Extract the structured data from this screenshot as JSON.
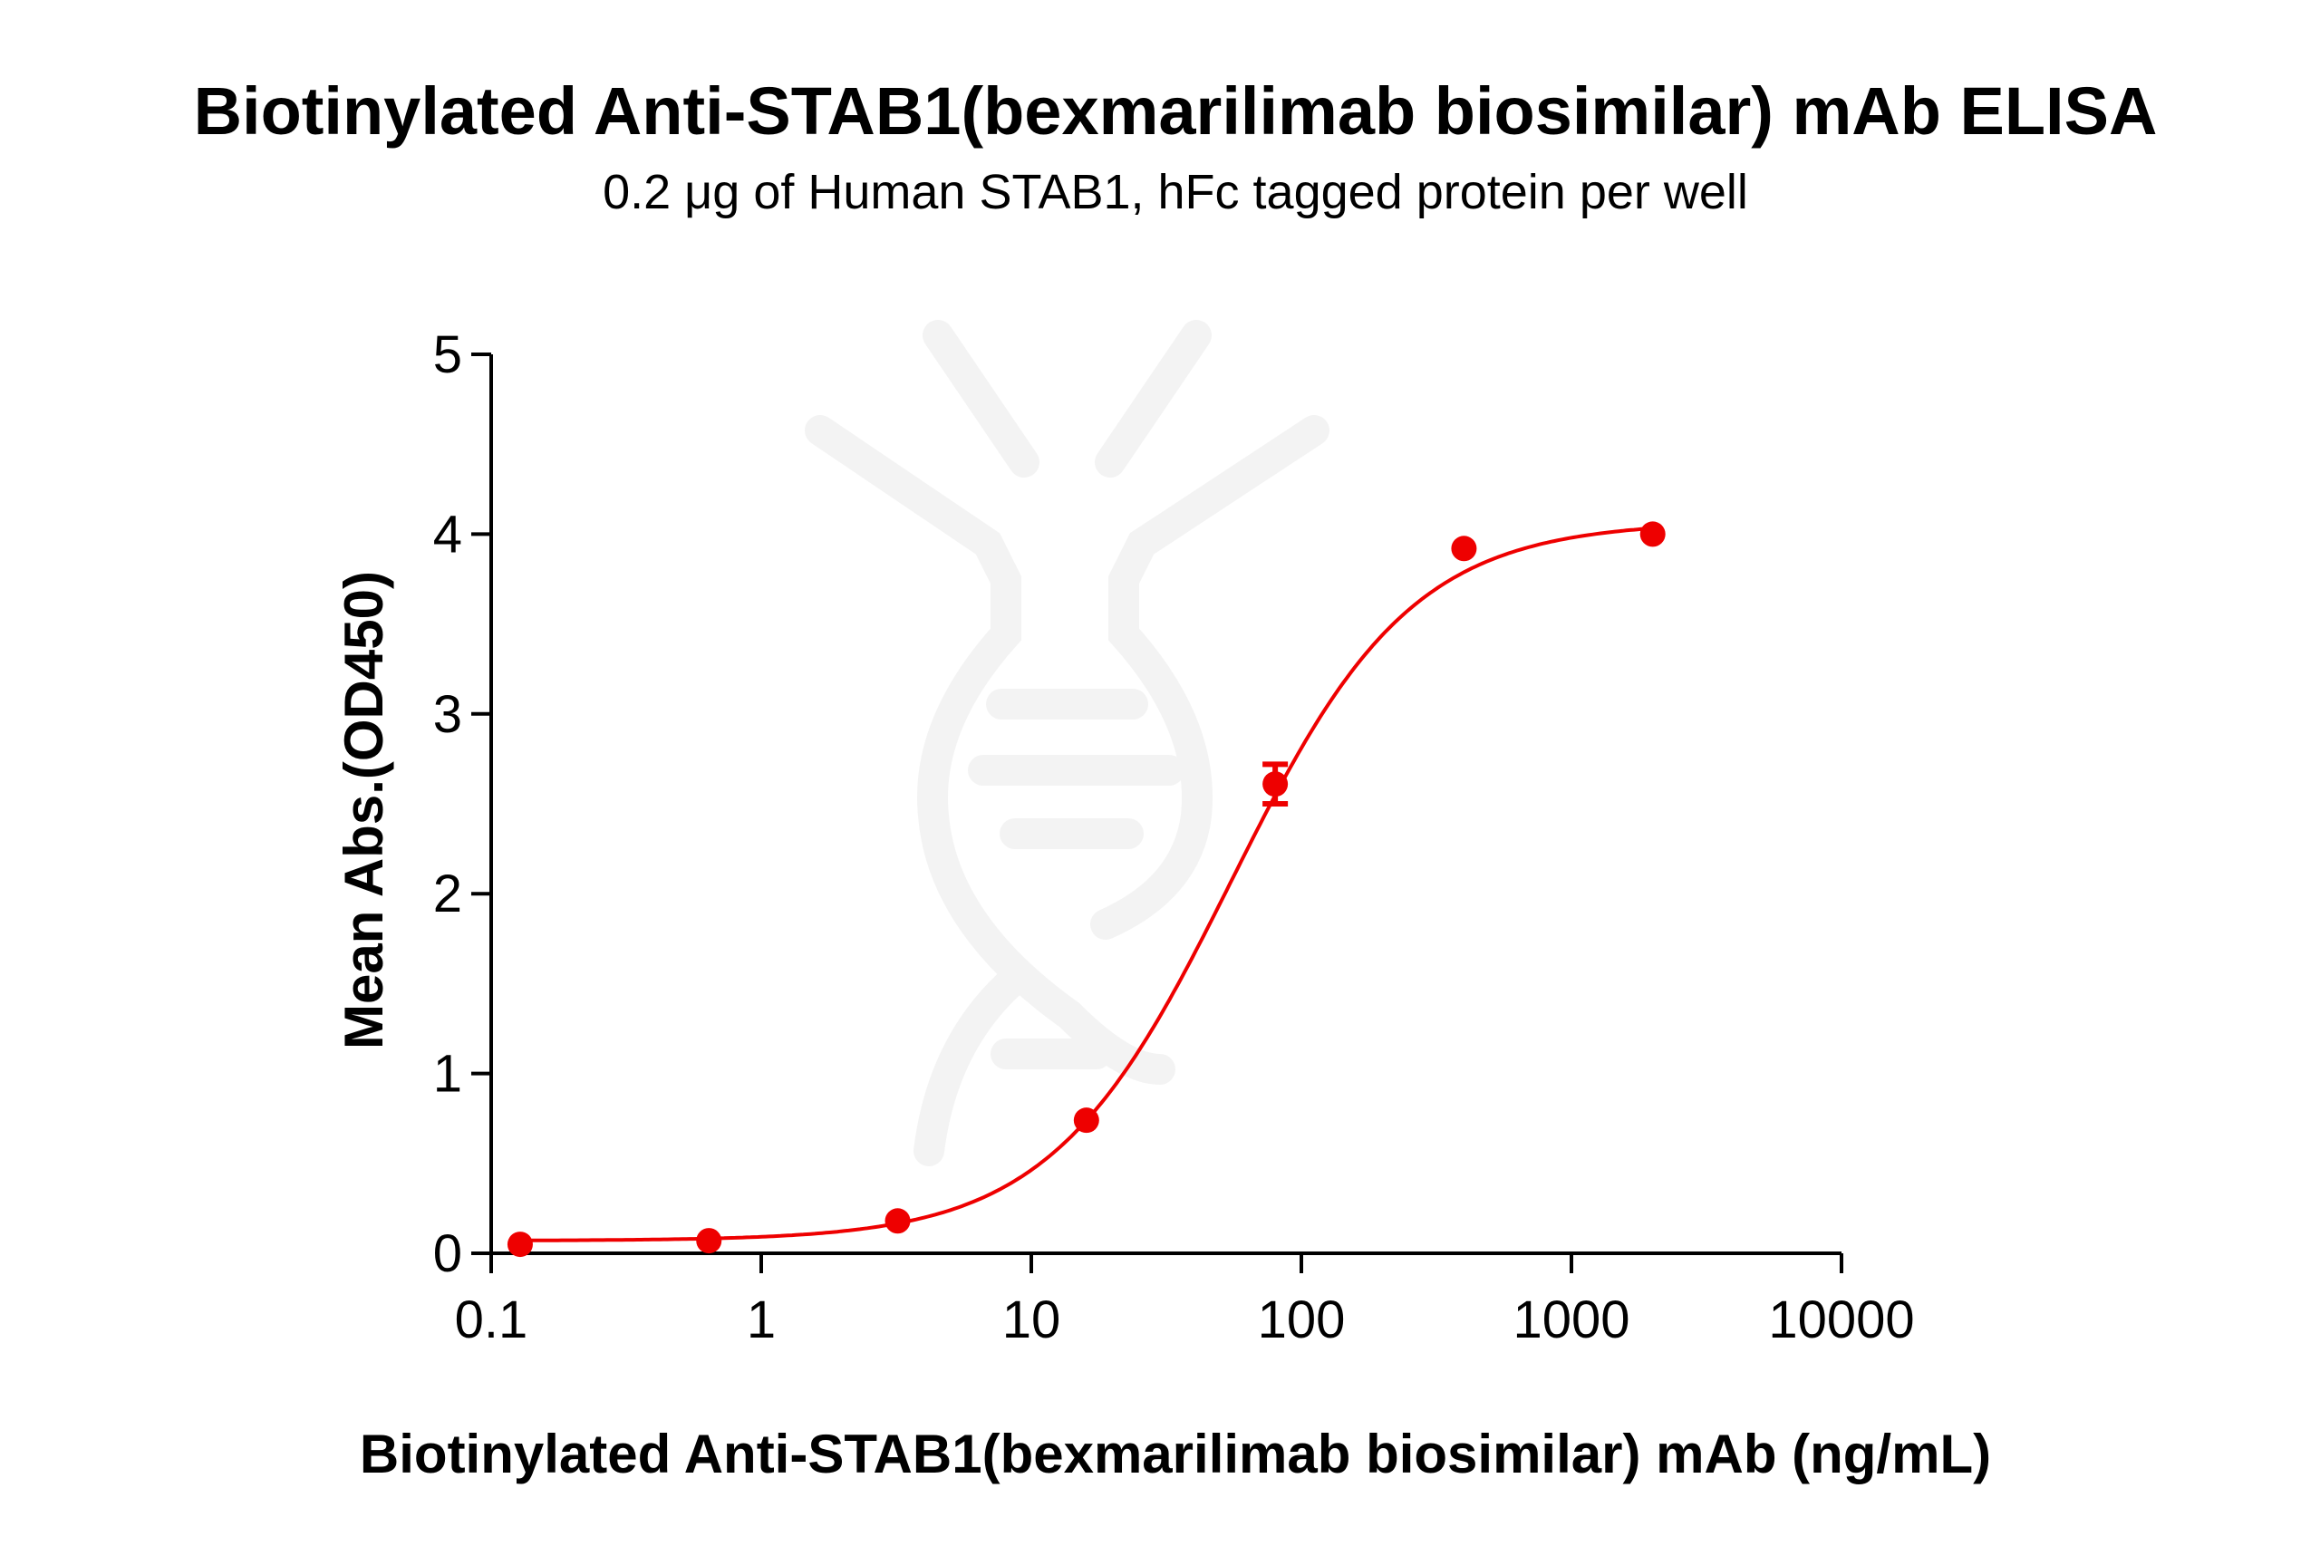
{
  "chart_data": {
    "type": "scatter",
    "title": "Biotinylated Anti-STAB1(bexmarilimab biosimilar) mAb ELISA",
    "subtitle": "0.2 μg of Human STAB1, hFc tagged protein per well",
    "xlabel": "Biotinylated Anti-STAB1(bexmarilimab biosimilar) mAb (ng/mL)",
    "ylabel": "Mean Abs.(OD450)",
    "xscale": "log",
    "xlim": [
      0.1,
      10000
    ],
    "ylim": [
      0,
      5
    ],
    "xticks": [
      "0.1",
      "1",
      "10",
      "100",
      "1000",
      "10000"
    ],
    "yticks": [
      "0",
      "1",
      "2",
      "3",
      "4",
      "5"
    ],
    "grid": false,
    "color": "#ee0000",
    "points": [
      {
        "x": 0.128,
        "y": 0.05
      },
      {
        "x": 0.64,
        "y": 0.07
      },
      {
        "x": 3.2,
        "y": 0.18
      },
      {
        "x": 16,
        "y": 0.74
      },
      {
        "x": 80,
        "y": 2.61,
        "err_low": 2.5,
        "err_high": 2.72
      },
      {
        "x": 400,
        "y": 3.92
      },
      {
        "x": 2000,
        "y": 4.0
      }
    ],
    "fit": {
      "model": "4PL",
      "bottom": 0.07,
      "top": 4.07,
      "ec50": 55,
      "hill": 1.3
    }
  }
}
